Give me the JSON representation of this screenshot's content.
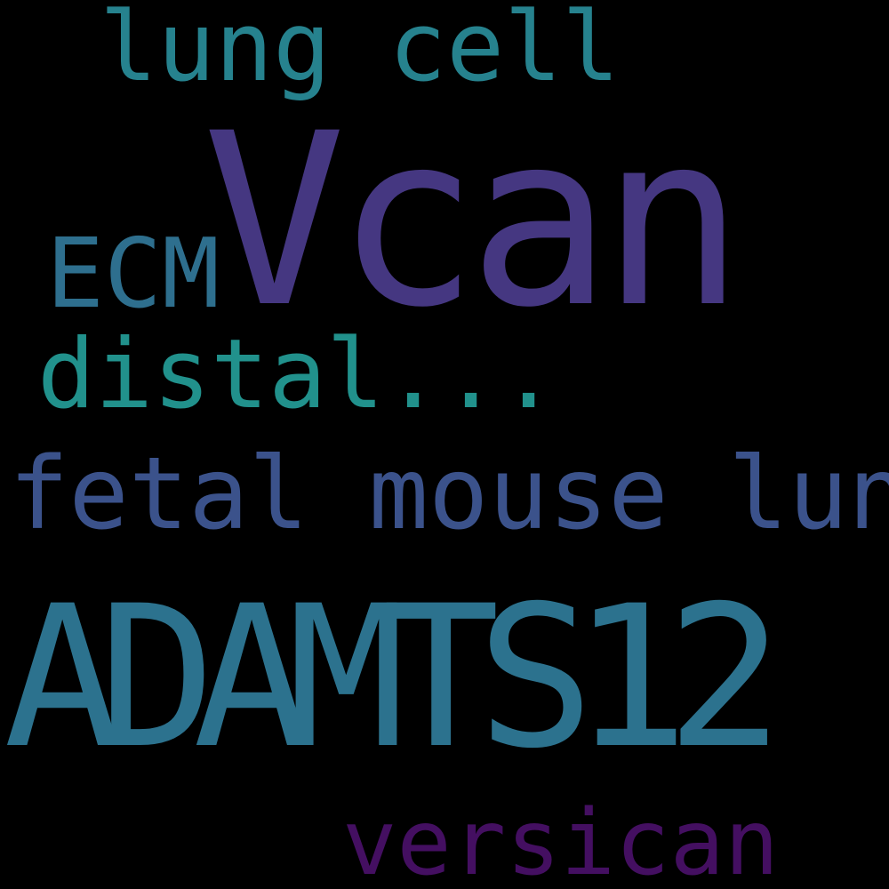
{
  "words": {
    "vcan": {
      "text": "Vcan",
      "color": "#453781"
    },
    "adamts12": {
      "text": "ADAMTS12",
      "color": "#2c728e"
    },
    "fetal_mouse_lung": {
      "text": "fetal mouse lung",
      "color": "#3b528b"
    },
    "lung_cell": {
      "text": "lung cell",
      "color": "#26828e"
    },
    "distal": {
      "text": "distal...",
      "color": "#21918c"
    },
    "ecm": {
      "text": "ECM",
      "color": "#2e6f8e"
    },
    "versican": {
      "text": "versican",
      "color": "#440f61"
    }
  }
}
